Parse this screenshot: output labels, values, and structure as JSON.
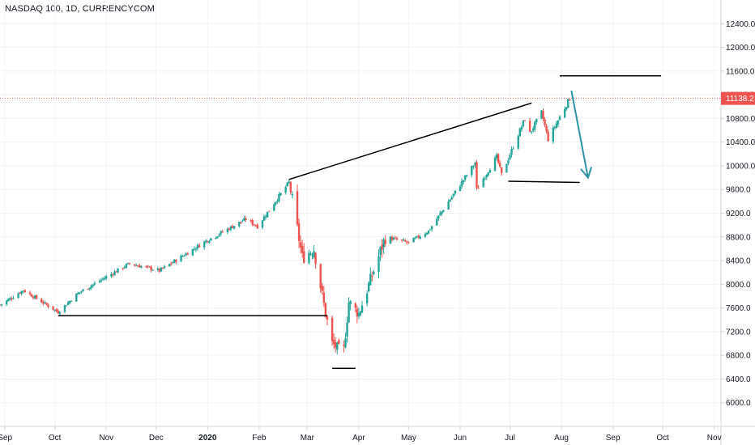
{
  "header": {
    "title": "NASDAQ 100, 1D, CURRENCYCOM"
  },
  "colors": {
    "up": "#26a69a",
    "down": "#ef5350",
    "grid": "#f0f3fa",
    "axis": "#d1d4dc",
    "drawing": "#000000",
    "arrow": "#2e93a6",
    "last_price": "#ef5350"
  },
  "chart_data": {
    "type": "candlestick",
    "title": "NASDAQ 100, 1D, CURRENCYCOM",
    "last_price": "11138.2",
    "yaxis": {
      "ticks": [
        6000,
        6400,
        6800,
        7200,
        7600,
        8000,
        8400,
        8800,
        9200,
        9600,
        10000,
        10400,
        10800,
        11200,
        11600,
        12000,
        12400
      ],
      "tick_labels": [
        "6000.0",
        "6400.0",
        "6800.0",
        "7200.0",
        "7600.0",
        "8000.0",
        "8400.0",
        "8800.0",
        "9200.0",
        "9600.0",
        "10000.0",
        "10400.0",
        "10800.0",
        "11200.0",
        "11600.0",
        "12000.0",
        "12400.0"
      ],
      "range": [
        5600,
        12800
      ]
    },
    "xaxis": {
      "labels": [
        "Sep",
        "Oct",
        "Nov",
        "Dec",
        "2020",
        "Feb",
        "Mar",
        "Apr",
        "May",
        "Jun",
        "Jul",
        "Aug",
        "Sep",
        "Oct",
        "Nov"
      ],
      "label_dates": [
        "2019-09-01",
        "2019-10-01",
        "2019-11-01",
        "2019-12-01",
        "2020-01-01",
        "2020-02-01",
        "2020-03-01",
        "2020-04-01",
        "2020-05-01",
        "2020-06-01",
        "2020-07-01",
        "2020-08-01",
        "2020-09-01",
        "2020-10-01",
        "2020-11-01"
      ],
      "range": [
        "2019-08-29",
        "2020-11-07"
      ]
    },
    "key_closes": [
      {
        "date": "2019-08-29",
        "close": 7650
      },
      {
        "date": "2019-09-12",
        "close": 7900
      },
      {
        "date": "2019-10-03",
        "close": 7530
      },
      {
        "date": "2019-10-15",
        "close": 7850
      },
      {
        "date": "2019-11-15",
        "close": 8350
      },
      {
        "date": "2019-12-03",
        "close": 8230
      },
      {
        "date": "2019-12-31",
        "close": 8730
      },
      {
        "date": "2020-01-24",
        "close": 9100
      },
      {
        "date": "2020-01-31",
        "close": 8980
      },
      {
        "date": "2020-02-19",
        "close": 9720
      },
      {
        "date": "2020-02-27",
        "close": 8450
      },
      {
        "date": "2020-03-05",
        "close": 8600
      },
      {
        "date": "2020-03-12",
        "close": 7500
      },
      {
        "date": "2020-03-16",
        "close": 7000
      },
      {
        "date": "2020-03-20",
        "close": 6900
      },
      {
        "date": "2020-03-23",
        "close": 6900
      },
      {
        "date": "2020-03-26",
        "close": 7700
      },
      {
        "date": "2020-04-01",
        "close": 7500
      },
      {
        "date": "2020-04-17",
        "close": 8800
      },
      {
        "date": "2020-05-01",
        "close": 8700
      },
      {
        "date": "2020-05-13",
        "close": 8900
      },
      {
        "date": "2020-06-10",
        "close": 10050
      },
      {
        "date": "2020-06-11",
        "close": 9600
      },
      {
        "date": "2020-06-23",
        "close": 10150
      },
      {
        "date": "2020-06-26",
        "close": 9850
      },
      {
        "date": "2020-07-10",
        "close": 10800
      },
      {
        "date": "2020-07-13",
        "close": 10550
      },
      {
        "date": "2020-07-20",
        "close": 10900
      },
      {
        "date": "2020-07-24",
        "close": 10450
      },
      {
        "date": "2020-08-06",
        "close": 11138.2
      }
    ],
    "drawings": [
      {
        "kind": "line",
        "from": {
          "date": "2019-10-03",
          "price": 7470
        },
        "to": {
          "date": "2020-03-13",
          "price": 7470
        }
      },
      {
        "kind": "line",
        "from": {
          "date": "2020-03-16",
          "price": 6580
        },
        "to": {
          "date": "2020-03-30",
          "price": 6580
        }
      },
      {
        "kind": "line",
        "from": {
          "date": "2020-02-19",
          "price": 9770
        },
        "to": {
          "date": "2020-07-14",
          "price": 11060
        }
      },
      {
        "kind": "line",
        "from": {
          "date": "2020-06-30",
          "price": 9740
        },
        "to": {
          "date": "2020-08-12",
          "price": 9720
        }
      },
      {
        "kind": "line",
        "from": {
          "date": "2020-07-31",
          "price": 11520
        },
        "to": {
          "date": "2020-09-30",
          "price": 11520
        }
      },
      {
        "kind": "arrow",
        "from": {
          "date": "2020-08-07",
          "price": 11270
        },
        "to": {
          "date": "2020-08-17",
          "price": 9800
        }
      }
    ]
  }
}
